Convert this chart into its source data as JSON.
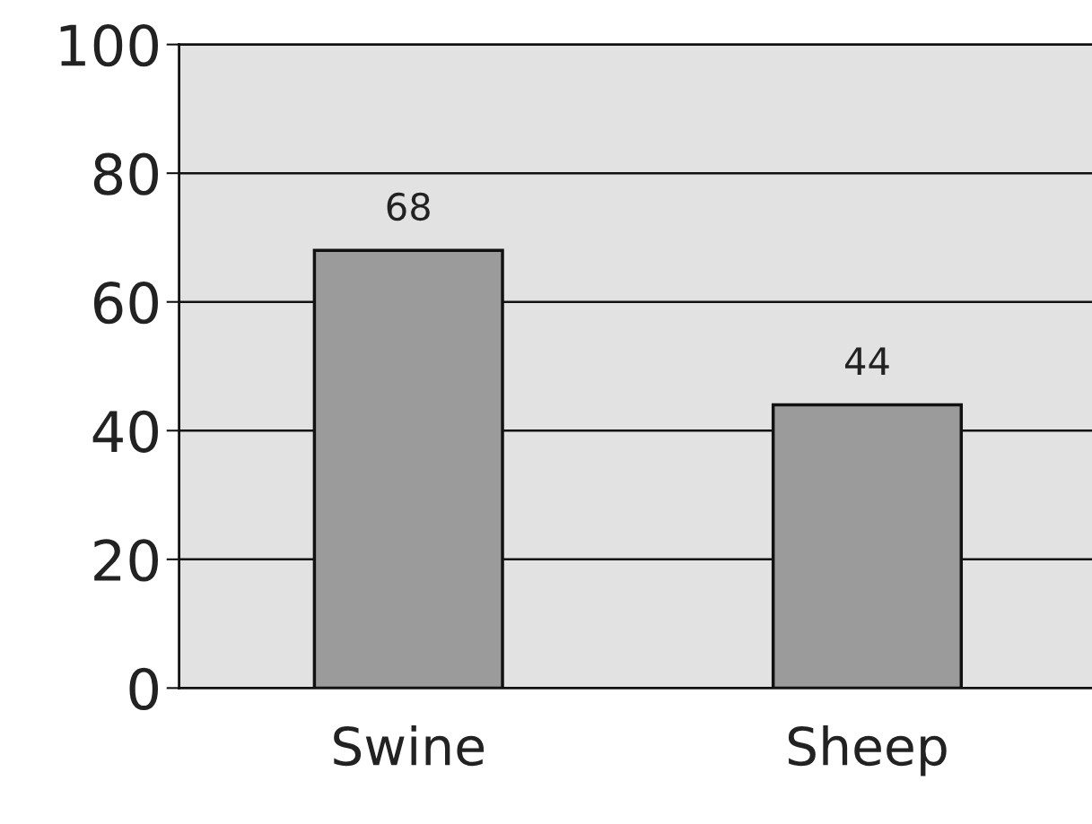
{
  "chart_data": {
    "type": "bar",
    "categories": [
      "Swine",
      "Sheep"
    ],
    "values": [
      68,
      44
    ],
    "color": "#9b9b9b",
    "ylim": [
      0,
      100
    ],
    "yticks": [
      0,
      20,
      40,
      60,
      80,
      100
    ],
    "grid": "y",
    "data_labels": true
  }
}
